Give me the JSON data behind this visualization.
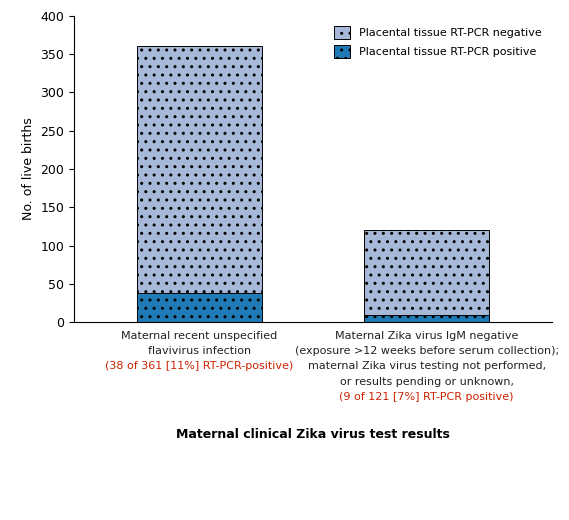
{
  "pcr_positive": [
    38,
    9
  ],
  "pcr_negative": [
    323,
    112
  ],
  "color_positive": "#1f7ab5",
  "color_negative": "#a8b8d8",
  "xlabel": "Maternal clinical Zika virus test results",
  "ylabel": "No. of live births",
  "ylim": [
    0,
    400
  ],
  "yticks": [
    0,
    50,
    100,
    150,
    200,
    250,
    300,
    350,
    400
  ],
  "legend_negative": "Placental tissue RT-PCR negative",
  "legend_positive": "Placental tissue RT-PCR positive",
  "bar_width": 0.55,
  "figsize": [
    5.69,
    5.2
  ],
  "dpi": 100,
  "cat_labels": [
    [
      {
        "text": "Maternal recent unspecified",
        "color": "#222222"
      },
      {
        "text": "flavivirus infection",
        "color": "#222222"
      },
      {
        "text": "(38 of 361 [11%] RT-PCR-positive)",
        "color": "#cc2200"
      }
    ],
    [
      {
        "text": "Maternal Zika virus IgM negative",
        "color": "#222222"
      },
      {
        "text": "(exposure >12 weeks before serum collection);",
        "color": "#222222"
      },
      {
        "text": "maternal Zika virus testing not performed,",
        "color": "#222222"
      },
      {
        "text": "or results pending or unknown,",
        "color": "#222222"
      },
      {
        "text": "(9 of 121 [7%] RT-PCR positive)",
        "color": "#cc2200"
      }
    ]
  ],
  "x_positions": [
    0,
    1
  ],
  "xlim": [
    -0.55,
    1.55
  ]
}
